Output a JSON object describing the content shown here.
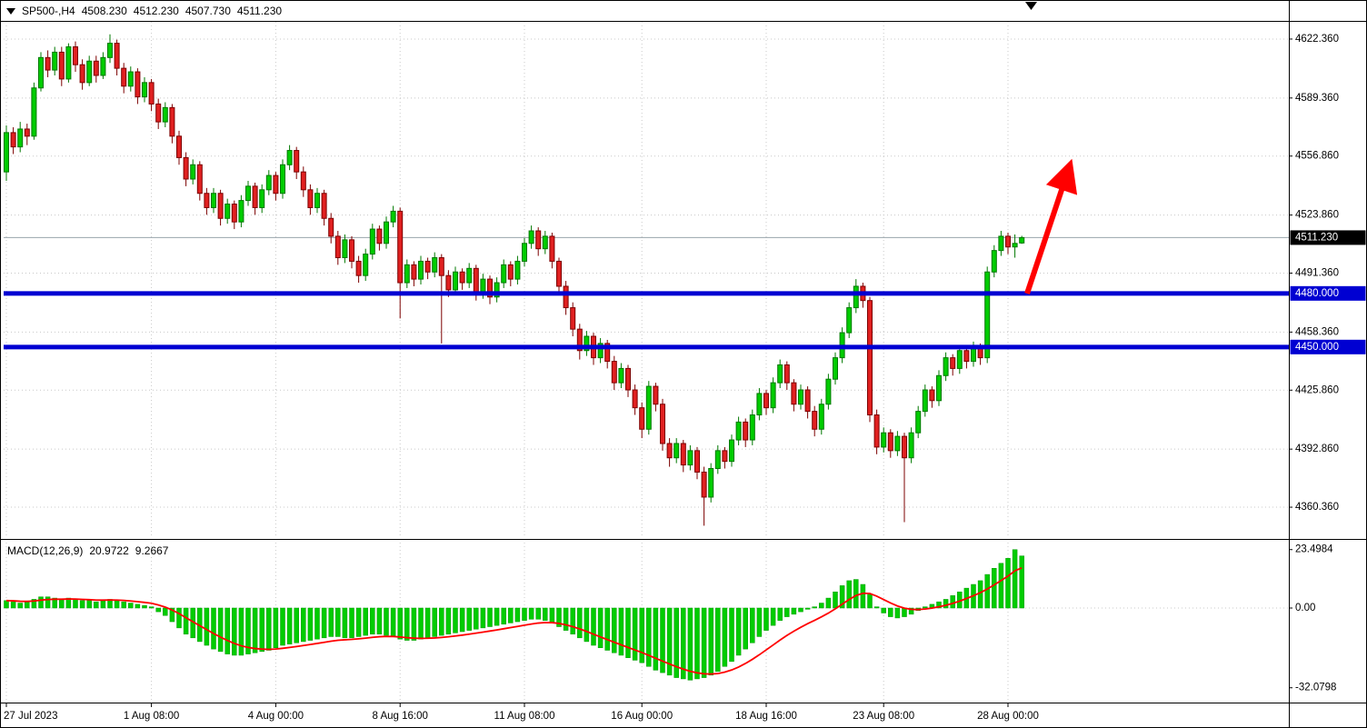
{
  "window": {
    "symbol_period": "SP500-,H4",
    "open": "4508.230",
    "high": "4512.230",
    "low": "4507.730",
    "close": "4511.230"
  },
  "macd_panel": {
    "title": "MACD(12,26,9)",
    "main_value": "20.9722",
    "signal_value": "9.2667"
  },
  "colors": {
    "background": "#FFFFFF",
    "bull": "#00CC00",
    "bull_border": "#007800",
    "bear": "#E02020",
    "bear_border": "#7C0000",
    "level": "#0000D2",
    "arrow": "#FF0000",
    "macd_hist": "#00CC00",
    "macd_hist_border": "#009900",
    "macd_signal": "#FF0000",
    "grid": "#C8C8C8",
    "current_price_tag_bg": "#000000",
    "current_price_line": "#9AA4AC"
  },
  "chart_data": [
    {
      "type": "candlestick",
      "symbol": "SP500-",
      "timeframe": "H4",
      "grid": "dotted",
      "ylim": [
        4343.6,
        4632
      ],
      "y_ticks": [
        {
          "value": 4622.36,
          "label": "4622.360"
        },
        {
          "value": 4589.36,
          "label": "4589.360"
        },
        {
          "value": 4556.86,
          "label": "4556.860"
        },
        {
          "value": 4523.86,
          "label": "4523.860"
        },
        {
          "value": 4491.36,
          "label": "4491.360"
        },
        {
          "value": 4458.36,
          "label": "4458.360"
        },
        {
          "value": 4425.86,
          "label": "4425.860"
        },
        {
          "value": 4392.86,
          "label": "4392.860"
        },
        {
          "value": 4360.36,
          "label": "4360.360"
        }
      ],
      "x_labels": [
        "27 Jul 2023",
        "1 Aug 08:00",
        "4 Aug 00:00",
        "8 Aug 16:00",
        "11 Aug 08:00",
        "16 Aug 00:00",
        "18 Aug 16:00",
        "23 Aug 08:00",
        "28 Aug 00:00"
      ],
      "x_label_bar_index": [
        0,
        21,
        39,
        57,
        75,
        92,
        110,
        127,
        145
      ],
      "current_price": 4511.23,
      "current_price_label": "4511.230",
      "levels": [
        {
          "value": 4480.0,
          "label": "4480.000"
        },
        {
          "value": 4450.0,
          "label": "4450.000"
        }
      ],
      "annotations": [
        {
          "type": "arrow",
          "direction": "up-right"
        }
      ],
      "ohlc": [
        [
          4548,
          4574,
          4543,
          4570
        ],
        [
          4570,
          4573,
          4558,
          4562
        ],
        [
          4562,
          4576,
          4559,
          4572
        ],
        [
          4572,
          4575,
          4563,
          4568
        ],
        [
          4568,
          4598,
          4566,
          4595
        ],
        [
          4595,
          4615,
          4593,
          4612
        ],
        [
          4612,
          4616,
          4601,
          4605
        ],
        [
          4605,
          4618,
          4602,
          4615
        ],
        [
          4615,
          4618,
          4596,
          4600
        ],
        [
          4600,
          4620,
          4598,
          4618
        ],
        [
          4618,
          4621,
          4604,
          4608
        ],
        [
          4608,
          4611,
          4594,
          4598
        ],
        [
          4598,
          4613,
          4596,
          4610
        ],
        [
          4610,
          4613,
          4598,
          4602
        ],
        [
          4602,
          4615,
          4600,
          4612
        ],
        [
          4612,
          4625,
          4609,
          4620
        ],
        [
          4620,
          4622,
          4602,
          4606
        ],
        [
          4606,
          4609,
          4592,
          4596
        ],
        [
          4596,
          4607,
          4593,
          4604
        ],
        [
          4604,
          4606,
          4586,
          4590
        ],
        [
          4590,
          4601,
          4587,
          4598
        ],
        [
          4598,
          4600,
          4582,
          4586
        ],
        [
          4586,
          4589,
          4572,
          4576
        ],
        [
          4576,
          4587,
          4573,
          4584
        ],
        [
          4584,
          4586,
          4564,
          4568
        ],
        [
          4568,
          4571,
          4552,
          4556
        ],
        [
          4556,
          4559,
          4540,
          4544
        ],
        [
          4544,
          4555,
          4541,
          4552
        ],
        [
          4552,
          4554,
          4532,
          4536
        ],
        [
          4536,
          4539,
          4524,
          4528
        ],
        [
          4528,
          4539,
          4525,
          4536
        ],
        [
          4536,
          4538,
          4518,
          4522
        ],
        [
          4522,
          4533,
          4519,
          4530
        ],
        [
          4530,
          4532,
          4516,
          4520
        ],
        [
          4520,
          4535,
          4517,
          4532
        ],
        [
          4532,
          4543,
          4529,
          4540
        ],
        [
          4540,
          4542,
          4524,
          4528
        ],
        [
          4528,
          4541,
          4525,
          4538
        ],
        [
          4538,
          4549,
          4535,
          4546
        ],
        [
          4546,
          4548,
          4532,
          4536
        ],
        [
          4536,
          4555,
          4533,
          4552
        ],
        [
          4552,
          4563,
          4549,
          4560
        ],
        [
          4560,
          4562,
          4544,
          4548
        ],
        [
          4548,
          4551,
          4534,
          4538
        ],
        [
          4538,
          4541,
          4524,
          4528
        ],
        [
          4528,
          4539,
          4525,
          4536
        ],
        [
          4536,
          4538,
          4518,
          4522
        ],
        [
          4522,
          4525,
          4508,
          4512
        ],
        [
          4512,
          4515,
          4496,
          4500
        ],
        [
          4500,
          4513,
          4497,
          4510
        ],
        [
          4510,
          4512,
          4494,
          4498
        ],
        [
          4498,
          4501,
          4486,
          4490
        ],
        [
          4490,
          4505,
          4487,
          4502
        ],
        [
          4502,
          4519,
          4499,
          4516
        ],
        [
          4516,
          4518,
          4504,
          4508
        ],
        [
          4508,
          4523,
          4505,
          4520
        ],
        [
          4520,
          4529,
          4517,
          4526
        ],
        [
          4526,
          4528,
          4466,
          4486
        ],
        [
          4486,
          4499,
          4483,
          4496
        ],
        [
          4496,
          4498,
          4484,
          4488
        ],
        [
          4488,
          4501,
          4485,
          4498
        ],
        [
          4498,
          4500,
          4488,
          4492
        ],
        [
          4492,
          4503,
          4489,
          4500
        ],
        [
          4500,
          4502,
          4452,
          4490
        ],
        [
          4490,
          4493,
          4478,
          4482
        ],
        [
          4482,
          4495,
          4479,
          4492
        ],
        [
          4492,
          4494,
          4482,
          4486
        ],
        [
          4486,
          4497,
          4483,
          4494
        ],
        [
          4494,
          4496,
          4476,
          4480
        ],
        [
          4480,
          4491,
          4477,
          4488
        ],
        [
          4488,
          4490,
          4474,
          4478
        ],
        [
          4478,
          4489,
          4475,
          4486
        ],
        [
          4486,
          4499,
          4483,
          4496
        ],
        [
          4496,
          4498,
          4484,
          4488
        ],
        [
          4488,
          4501,
          4485,
          4498
        ],
        [
          4498,
          4511,
          4495,
          4508
        ],
        [
          4508,
          4518,
          4505,
          4515
        ],
        [
          4515,
          4517,
          4501,
          4505
        ],
        [
          4505,
          4515,
          4502,
          4512
        ],
        [
          4512,
          4514,
          4494,
          4498
        ],
        [
          4498,
          4500,
          4480,
          4484
        ],
        [
          4484,
          4487,
          4468,
          4472
        ],
        [
          4472,
          4475,
          4456,
          4460
        ],
        [
          4460,
          4463,
          4443,
          4448
        ],
        [
          4448,
          4459,
          4445,
          4456
        ],
        [
          4456,
          4458,
          4440,
          4444
        ],
        [
          4444,
          4455,
          4441,
          4452
        ],
        [
          4452,
          4454,
          4438,
          4442
        ],
        [
          4442,
          4445,
          4426,
          4430
        ],
        [
          4430,
          4441,
          4427,
          4438
        ],
        [
          4438,
          4440,
          4422,
          4426
        ],
        [
          4426,
          4429,
          4412,
          4416
        ],
        [
          4416,
          4419,
          4399,
          4404
        ],
        [
          4404,
          4431,
          4401,
          4428
        ],
        [
          4428,
          4430,
          4414,
          4418
        ],
        [
          4418,
          4421,
          4392,
          4396
        ],
        [
          4396,
          4399,
          4383,
          4388
        ],
        [
          4388,
          4399,
          4385,
          4396
        ],
        [
          4396,
          4398,
          4380,
          4384
        ],
        [
          4384,
          4395,
          4381,
          4392
        ],
        [
          4392,
          4394,
          4376,
          4380
        ],
        [
          4380,
          4383,
          4350,
          4366
        ],
        [
          4366,
          4385,
          4363,
          4382
        ],
        [
          4382,
          4395,
          4379,
          4392
        ],
        [
          4392,
          4394,
          4382,
          4386
        ],
        [
          4386,
          4401,
          4383,
          4398
        ],
        [
          4398,
          4411,
          4395,
          4408
        ],
        [
          4408,
          4410,
          4394,
          4398
        ],
        [
          4398,
          4415,
          4395,
          4412
        ],
        [
          4412,
          4427,
          4409,
          4424
        ],
        [
          4424,
          4426,
          4412,
          4416
        ],
        [
          4416,
          4433,
          4413,
          4430
        ],
        [
          4430,
          4443,
          4427,
          4440
        ],
        [
          4440,
          4442,
          4426,
          4430
        ],
        [
          4430,
          4432,
          4414,
          4418
        ],
        [
          4418,
          4429,
          4415,
          4426
        ],
        [
          4426,
          4428,
          4410,
          4414
        ],
        [
          4414,
          4417,
          4400,
          4404
        ],
        [
          4404,
          4421,
          4401,
          4418
        ],
        [
          4418,
          4435,
          4415,
          4432
        ],
        [
          4432,
          4447,
          4429,
          4444
        ],
        [
          4444,
          4461,
          4441,
          4458
        ],
        [
          4458,
          4475,
          4455,
          4472
        ],
        [
          4472,
          4488,
          4469,
          4484
        ],
        [
          4484,
          4486,
          4472,
          4476
        ],
        [
          4476,
          4478,
          4408,
          4412
        ],
        [
          4412,
          4415,
          4390,
          4394
        ],
        [
          4394,
          4405,
          4391,
          4402
        ],
        [
          4402,
          4404,
          4388,
          4392
        ],
        [
          4392,
          4403,
          4389,
          4400
        ],
        [
          4400,
          4402,
          4352,
          4388
        ],
        [
          4388,
          4405,
          4385,
          4402
        ],
        [
          4402,
          4417,
          4399,
          4414
        ],
        [
          4414,
          4429,
          4411,
          4426
        ],
        [
          4426,
          4428,
          4416,
          4420
        ],
        [
          4420,
          4437,
          4417,
          4434
        ],
        [
          4434,
          4447,
          4431,
          4444
        ],
        [
          4444,
          4446,
          4434,
          4438
        ],
        [
          4438,
          4451,
          4435,
          4448
        ],
        [
          4448,
          4450,
          4438,
          4442
        ],
        [
          4442,
          4453,
          4439,
          4450
        ],
        [
          4450,
          4452,
          4440,
          4444
        ],
        [
          4444,
          4495,
          4441,
          4492
        ],
        [
          4492,
          4507,
          4489,
          4504
        ],
        [
          4504,
          4515,
          4501,
          4512
        ],
        [
          4512,
          4514,
          4502,
          4506
        ],
        [
          4506,
          4513,
          4500,
          4508
        ],
        [
          4508.23,
          4512.23,
          4507.73,
          4511.23
        ]
      ]
    },
    {
      "type": "bar",
      "name": "MACD(12,26,9)",
      "current_macd": 20.9722,
      "current_signal": 9.2667,
      "signal_line": {
        "type": "ema",
        "period": 9
      },
      "y_ticks": [
        {
          "value": 23.4984,
          "label": "23.4984"
        },
        {
          "value": 0,
          "label": "0.00"
        },
        {
          "value": -32.0798,
          "label": "-32.0798"
        }
      ],
      "values": [
        3,
        2.5,
        2,
        2.5,
        3.5,
        4.5,
        4.5,
        4,
        3.5,
        4,
        3.5,
        3,
        3,
        2.5,
        3,
        3.5,
        3,
        2.5,
        2,
        1.5,
        1,
        0.5,
        -1.5,
        -3,
        -5.5,
        -8,
        -10.5,
        -12,
        -13.5,
        -15,
        -16.5,
        -17.5,
        -18.5,
        -19,
        -19,
        -18.5,
        -18,
        -17.5,
        -17,
        -16,
        -15,
        -14.5,
        -14,
        -13.5,
        -13,
        -12.5,
        -12,
        -11.5,
        -11.5,
        -12,
        -12,
        -11.5,
        -11,
        -10.5,
        -10.5,
        -11,
        -11.5,
        -12.5,
        -13,
        -13,
        -12.5,
        -12,
        -11.5,
        -11,
        -10.5,
        -10,
        -9.5,
        -9,
        -8.5,
        -8,
        -7.5,
        -7,
        -6.5,
        -6,
        -5.5,
        -5,
        -4.5,
        -4.5,
        -5,
        -6,
        -7.5,
        -9,
        -10.5,
        -12,
        -13.5,
        -15,
        -16,
        -17,
        -18,
        -19,
        -20,
        -21,
        -22,
        -23.5,
        -25,
        -26,
        -27,
        -28,
        -28.5,
        -29,
        -28.5,
        -28,
        -27,
        -25.5,
        -23.5,
        -21.5,
        -19,
        -16.5,
        -14,
        -11.5,
        -9,
        -7,
        -5,
        -3.5,
        -2.5,
        -1.5,
        -0.5,
        0.5,
        2,
        4,
        6.5,
        9,
        11,
        11.5,
        9.5,
        5.5,
        0.5,
        -2,
        -3.5,
        -4,
        -3.5,
        -2.5,
        -1,
        0.5,
        1.5,
        2.5,
        3.5,
        5,
        6.5,
        8,
        9.5,
        11,
        13.5,
        16,
        18,
        20,
        23.5,
        20.97
      ]
    }
  ]
}
